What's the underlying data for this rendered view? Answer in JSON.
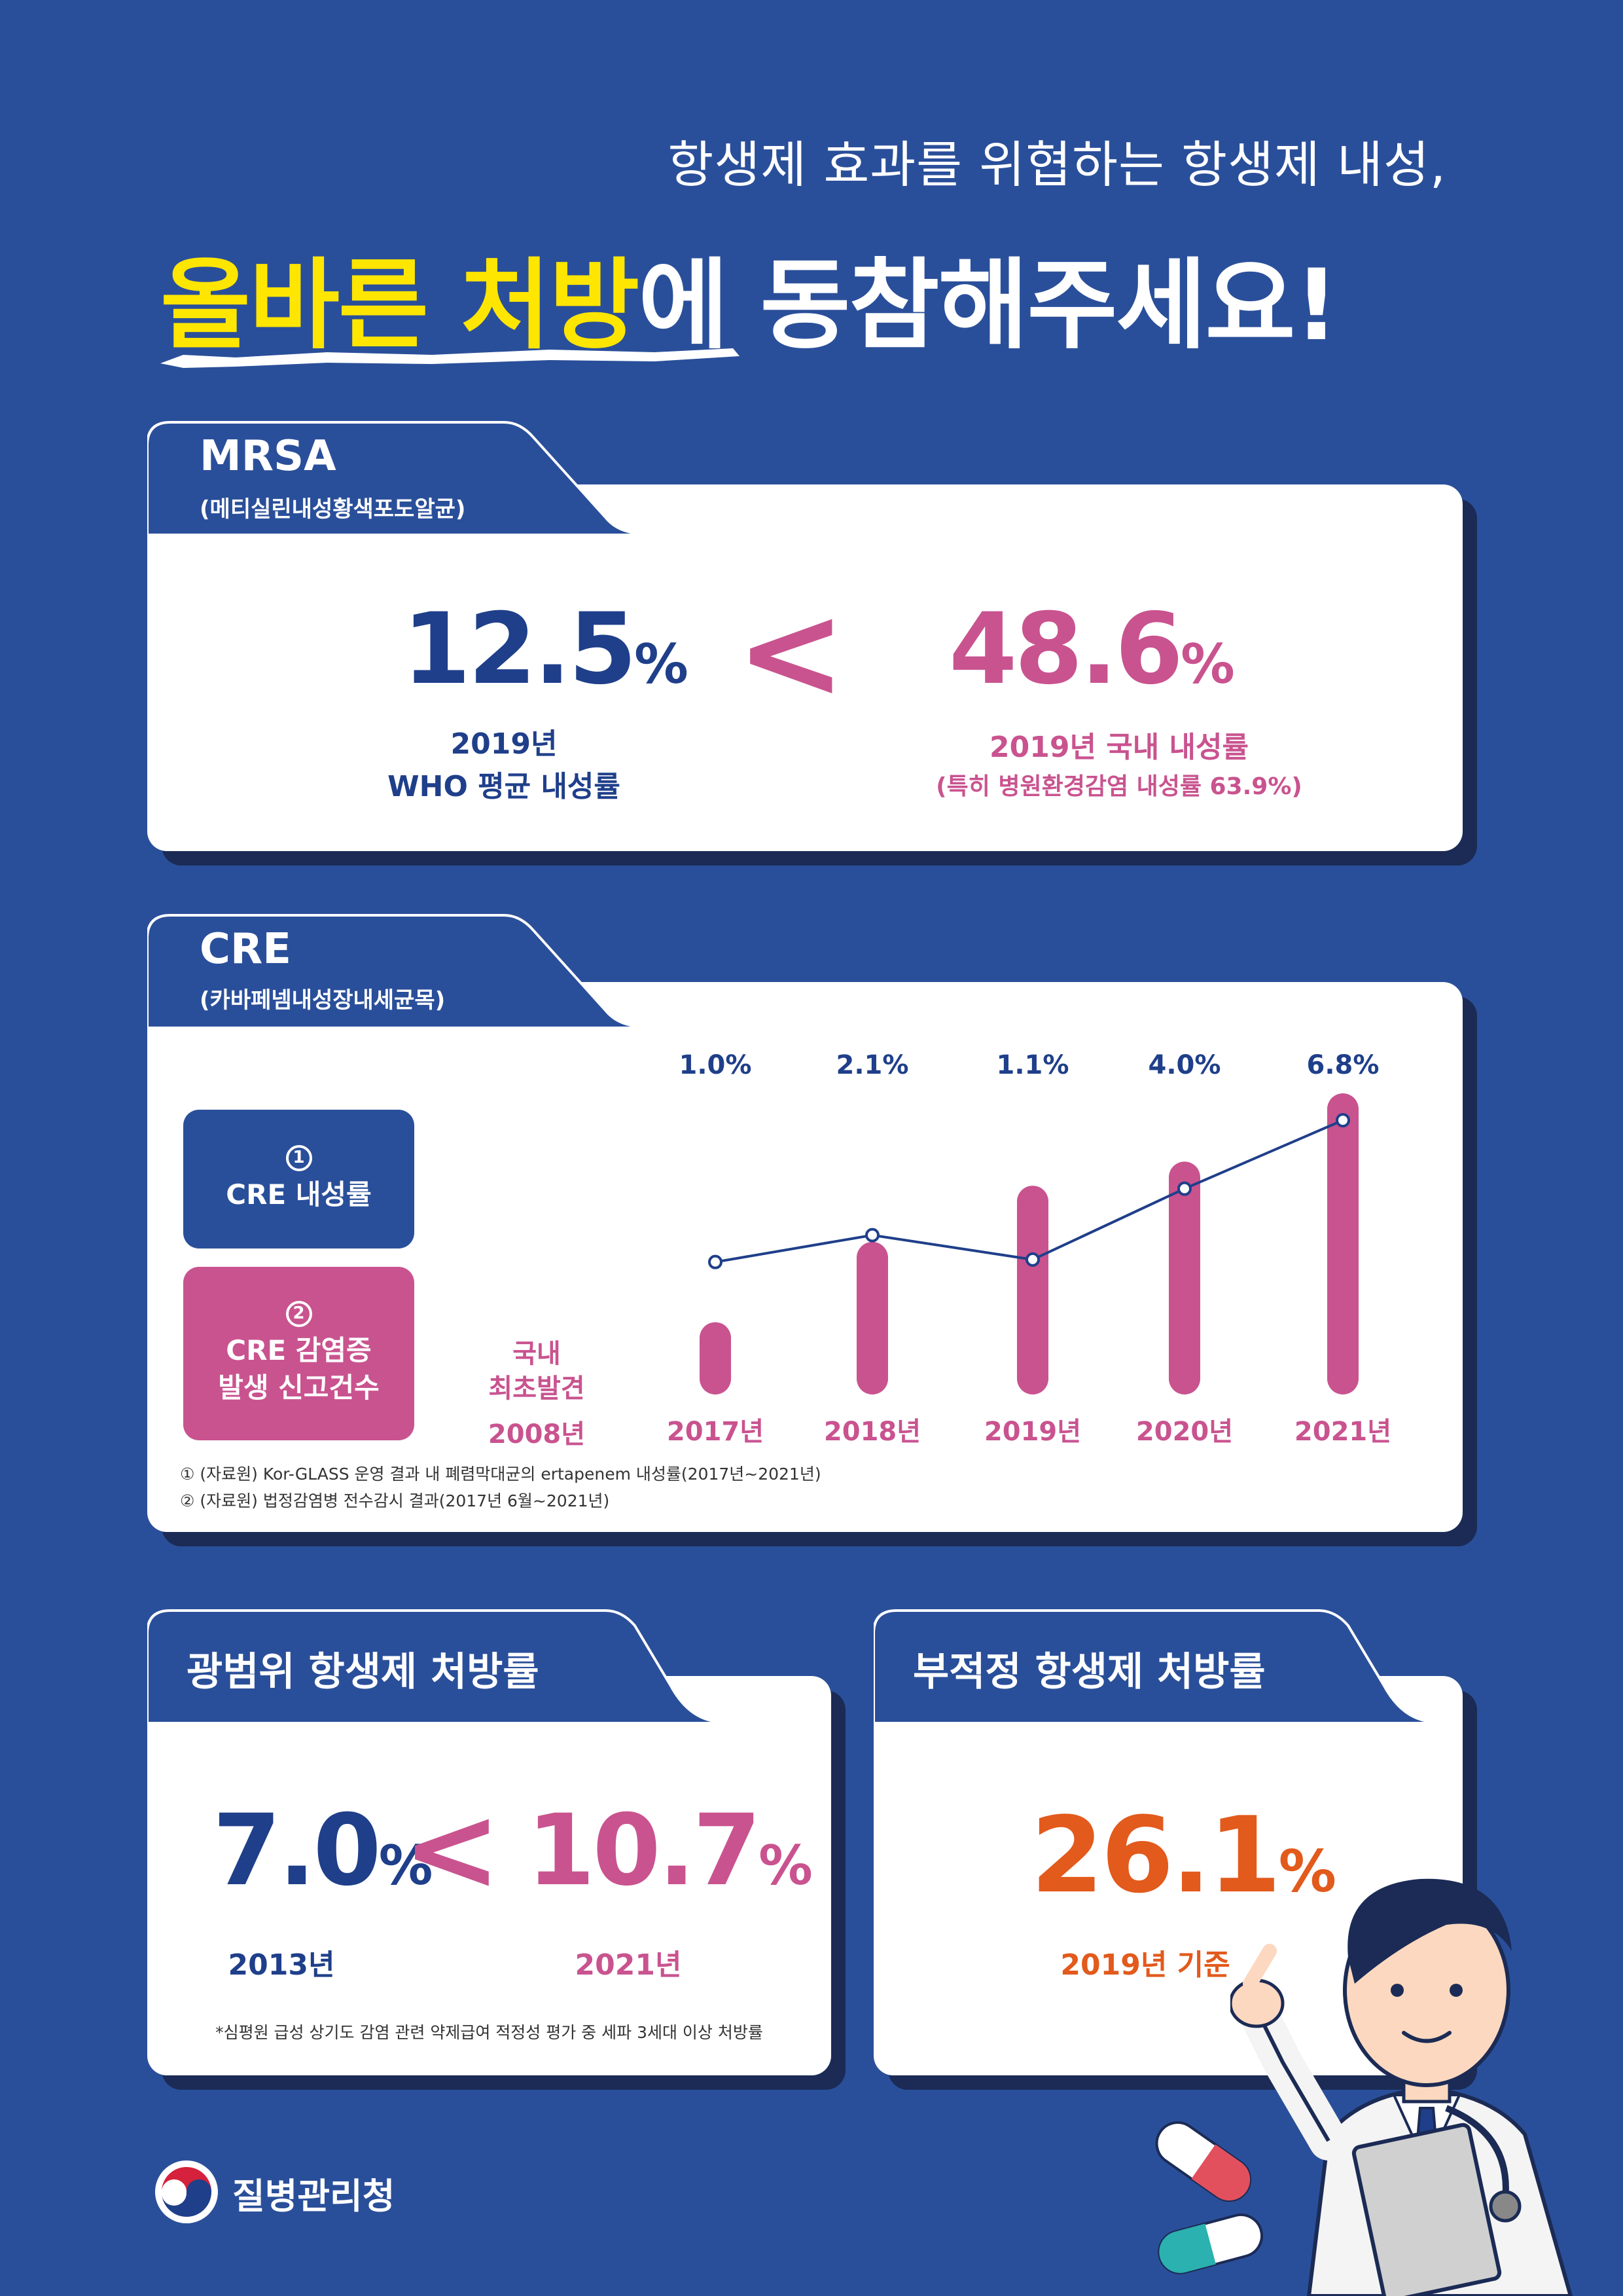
{
  "header": {
    "subtitle": "항생제 효과를 위협하는 항생제 내성,",
    "headline_yellow_1": "올바른",
    "headline_yellow_2": "처방",
    "headline_white": "에 동참해주세요!"
  },
  "mrsa": {
    "title": "MRSA",
    "subtitle": "(메티실린내성황색포도알균)",
    "who_value": "12.5",
    "who_pct": "%",
    "who_label_1": "2019년",
    "who_label_2": "WHO 평균 내성률",
    "comparator": "<",
    "kr_value": "48.6",
    "kr_pct": "%",
    "kr_label_1": "2019년 국내 내성률",
    "kr_label_2": "(특히 병원환경감염 내성률 63.9%)"
  },
  "cre": {
    "title": "CRE",
    "subtitle": "(카바페넴내성장내세균목)",
    "legend_1_num": "1",
    "legend_1_label": "CRE 내성률",
    "legend_2_num": "2",
    "legend_2_label_1": "CRE 감염증",
    "legend_2_label_2": "발생 신고건수",
    "first_found_label_1": "국내",
    "first_found_label_2": "최초발견",
    "first_found_year": "2008년",
    "source_1": "① (자료원) Kor-GLASS 운영 결과 내 폐렴막대균의 ertapenem 내성률(2017년~2021년)",
    "source_2": "② (자료원) 법정감염병 전수감시 결과(2017년 6월~2021년)"
  },
  "chart_data": {
    "type": "bar",
    "categories": [
      "2017년",
      "2018년",
      "2019년",
      "2020년",
      "2021년"
    ],
    "series": [
      {
        "name": "CRE 내성률",
        "type": "line",
        "values": [
          1.0,
          2.1,
          1.1,
          4.0,
          6.8
        ],
        "labels": [
          "1.0%",
          "2.1%",
          "1.1%",
          "4.0%",
          "6.8%"
        ],
        "color": "#1f3f8a"
      },
      {
        "name": "CRE 감염증 발생 신고건수",
        "type": "bar",
        "values": [
          0.18,
          0.38,
          0.52,
          0.58,
          0.75
        ],
        "color": "#c9538f"
      }
    ]
  },
  "broad_spectrum": {
    "title": "광범위 항생제 처방률",
    "value_2013": "7.0",
    "value_2021": "10.7",
    "pct": "%",
    "comparator": "<",
    "year_2013": "2013년",
    "year_2021": "2021년",
    "footnote": "*심평원 급성 상기도 감염 관련 약제급여 적정성 평가 중 세파 3세대 이상 처방률"
  },
  "inappropriate": {
    "title": "부적정 항생제 처방률",
    "value": "26.1",
    "pct": "%",
    "label": "2019년 기준"
  },
  "footer": {
    "agency": "질병관리청"
  },
  "colors": {
    "background": "#2a4f9a",
    "navy": "#1f3f8a",
    "pink": "#c9538f",
    "yellow": "#ffe600",
    "orange": "#e25a1c"
  }
}
